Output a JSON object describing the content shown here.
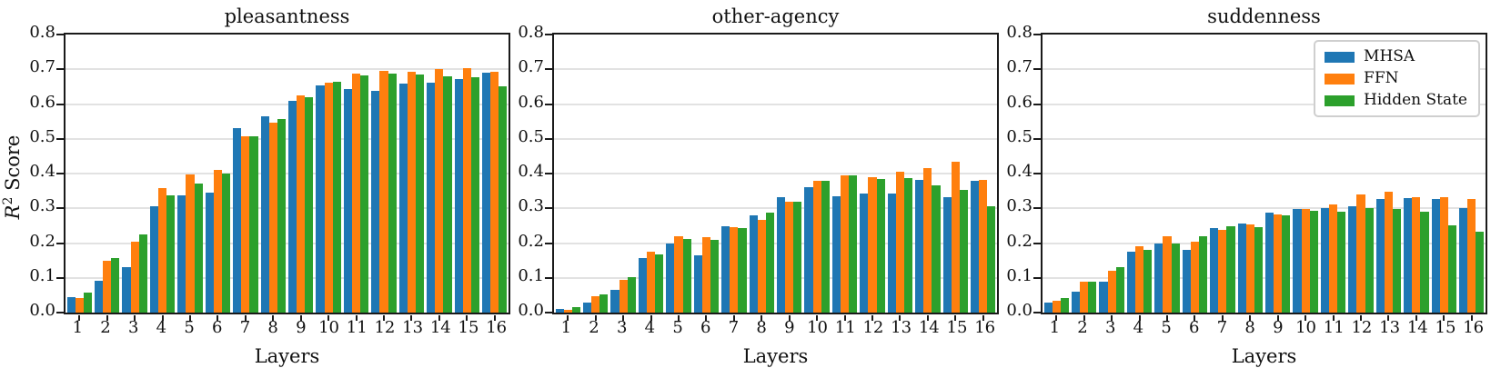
{
  "figure": {
    "ylabel": {
      "math": "R",
      "sup": "2",
      "rest": " Score"
    }
  },
  "axis": {
    "ymax": 0.8,
    "yticks": [
      "0.0",
      "0.1",
      "0.2",
      "0.3",
      "0.4",
      "0.5",
      "0.6",
      "0.7",
      "0.8"
    ],
    "grid_values": [
      0.1,
      0.2,
      0.3,
      0.4,
      0.5,
      0.6,
      0.7
    ],
    "grid_color": "#e2e2e2",
    "spine_color": "#1a1a1a"
  },
  "legend": {
    "entries": [
      "MHSA",
      "FFN",
      "Hidden State"
    ],
    "position": "upper right of third subplot"
  },
  "colors": {
    "MHSA": "#1f77b4",
    "FFN": "#ff7f0e",
    "Hidden State": "#2ca02c"
  },
  "chart_data": [
    {
      "type": "bar",
      "title": "pleasantness",
      "xlabel": "Layers",
      "ylabel": "R^2 Score",
      "ylim": [
        0,
        0.8
      ],
      "grid": true,
      "categories": [
        "1",
        "2",
        "3",
        "4",
        "5",
        "6",
        "7",
        "8",
        "9",
        "10",
        "11",
        "12",
        "13",
        "14",
        "15",
        "16"
      ],
      "series": [
        {
          "name": "MHSA",
          "color": "#1f77b4",
          "values": [
            0.045,
            0.092,
            0.13,
            0.307,
            0.336,
            0.344,
            0.532,
            0.565,
            0.608,
            0.653,
            0.643,
            0.637,
            0.66,
            0.662,
            0.672,
            0.69
          ]
        },
        {
          "name": "FFN",
          "color": "#ff7f0e",
          "values": [
            0.042,
            0.148,
            0.205,
            0.357,
            0.398,
            0.41,
            0.508,
            0.546,
            0.624,
            0.661,
            0.687,
            0.695,
            0.692,
            0.701,
            0.704,
            0.694
          ]
        },
        {
          "name": "Hidden State",
          "color": "#2ca02c",
          "values": [
            0.057,
            0.158,
            0.224,
            0.337,
            0.37,
            0.401,
            0.506,
            0.556,
            0.619,
            0.665,
            0.682,
            0.687,
            0.685,
            0.679,
            0.677,
            0.651
          ]
        }
      ]
    },
    {
      "type": "bar",
      "title": "other-agency",
      "xlabel": "Layers",
      "ylabel": "R^2 Score",
      "ylim": [
        0,
        0.8
      ],
      "grid": true,
      "categories": [
        "1",
        "2",
        "3",
        "4",
        "5",
        "6",
        "7",
        "8",
        "9",
        "10",
        "11",
        "12",
        "13",
        "14",
        "15",
        "16"
      ],
      "series": [
        {
          "name": "MHSA",
          "color": "#1f77b4",
          "values": [
            0.01,
            0.028,
            0.066,
            0.156,
            0.2,
            0.166,
            0.249,
            0.279,
            0.333,
            0.36,
            0.335,
            0.342,
            0.342,
            0.383,
            0.331,
            0.378
          ]
        },
        {
          "name": "FFN",
          "color": "#ff7f0e",
          "values": [
            0.008,
            0.048,
            0.095,
            0.176,
            0.22,
            0.218,
            0.246,
            0.268,
            0.318,
            0.379,
            0.396,
            0.389,
            0.405,
            0.416,
            0.433,
            0.381
          ]
        },
        {
          "name": "Hidden State",
          "color": "#2ca02c",
          "values": [
            0.015,
            0.052,
            0.102,
            0.167,
            0.213,
            0.21,
            0.243,
            0.287,
            0.318,
            0.38,
            0.396,
            0.385,
            0.387,
            0.365,
            0.353,
            0.307
          ]
        }
      ]
    },
    {
      "type": "bar",
      "title": "suddenness",
      "xlabel": "Layers",
      "ylabel": "R^2 Score",
      "ylim": [
        0,
        0.8
      ],
      "grid": true,
      "legend": true,
      "categories": [
        "1",
        "2",
        "3",
        "4",
        "5",
        "6",
        "7",
        "8",
        "9",
        "10",
        "11",
        "12",
        "13",
        "14",
        "15",
        "16"
      ],
      "series": [
        {
          "name": "MHSA",
          "color": "#1f77b4",
          "values": [
            0.03,
            0.059,
            0.09,
            0.174,
            0.198,
            0.181,
            0.244,
            0.257,
            0.287,
            0.299,
            0.301,
            0.306,
            0.328,
            0.33,
            0.328,
            0.301
          ]
        },
        {
          "name": "FFN",
          "color": "#ff7f0e",
          "values": [
            0.034,
            0.09,
            0.121,
            0.19,
            0.219,
            0.204,
            0.238,
            0.253,
            0.283,
            0.298,
            0.312,
            0.34,
            0.347,
            0.331,
            0.333,
            0.327
          ]
        },
        {
          "name": "Hidden State",
          "color": "#2ca02c",
          "values": [
            0.042,
            0.089,
            0.13,
            0.181,
            0.199,
            0.22,
            0.249,
            0.246,
            0.281,
            0.293,
            0.291,
            0.3,
            0.298,
            0.289,
            0.252,
            0.233
          ]
        }
      ]
    }
  ]
}
